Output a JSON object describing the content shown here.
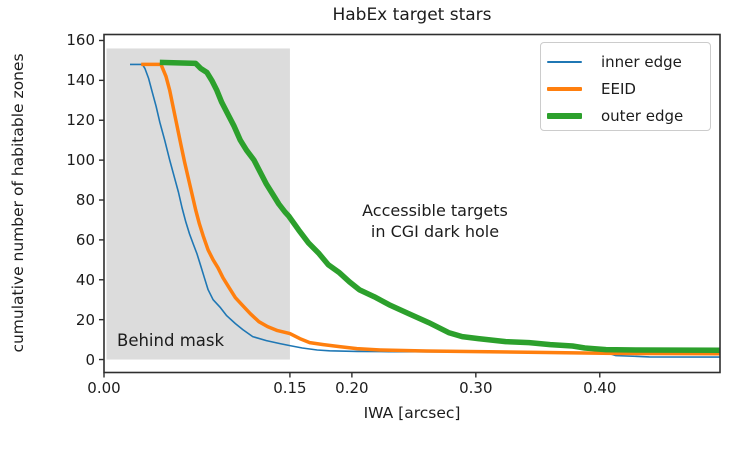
{
  "figure": {
    "title": "HabEx target stars"
  },
  "annotations": {
    "accessible_line1": "Accessible targets",
    "accessible_line2": "in CGI dark hole",
    "mask_label": "Behind mask"
  },
  "chart_data": {
    "type": "line",
    "title": "HabEx target stars",
    "xlabel": "IWA [arcsec]",
    "ylabel": "cumulative number of habitable zones",
    "xlim": [
      0,
      0.497
    ],
    "ylim": [
      -6.5,
      163
    ],
    "grid": false,
    "legend_position": "upper right",
    "x_ticks": [
      0.0,
      0.15,
      0.2,
      0.3,
      0.4
    ],
    "x_tick_labels": [
      "0.00",
      "0.15",
      "0.20",
      "0.30",
      "0.40"
    ],
    "y_ticks": [
      0,
      20,
      40,
      60,
      80,
      100,
      120,
      140,
      160
    ],
    "y_tick_labels": [
      "0",
      "20",
      "40",
      "60",
      "80",
      "100",
      "120",
      "140",
      "160"
    ],
    "shaded_region": {
      "label": "Behind mask",
      "x0": 0.002,
      "x1": 0.15,
      "y0": 0,
      "y1": 156,
      "color": "#dcdcdc"
    },
    "series": [
      {
        "name": "inner edge",
        "color": "#1f77b4",
        "linewidth": 1.6,
        "points": [
          [
            0.021,
            148
          ],
          [
            0.031,
            148
          ],
          [
            0.033,
            146
          ],
          [
            0.036,
            141
          ],
          [
            0.039,
            134
          ],
          [
            0.042,
            127
          ],
          [
            0.045,
            119
          ],
          [
            0.049,
            110
          ],
          [
            0.053,
            100
          ],
          [
            0.057,
            91
          ],
          [
            0.06,
            84
          ],
          [
            0.063,
            76
          ],
          [
            0.066,
            69
          ],
          [
            0.069,
            63
          ],
          [
            0.072,
            58
          ],
          [
            0.075,
            53
          ],
          [
            0.078,
            47
          ],
          [
            0.081,
            41
          ],
          [
            0.084,
            35
          ],
          [
            0.088,
            30
          ],
          [
            0.094,
            26
          ],
          [
            0.099,
            22
          ],
          [
            0.106,
            18
          ],
          [
            0.112,
            15
          ],
          [
            0.12,
            11.5
          ],
          [
            0.131,
            9.5
          ],
          [
            0.142,
            8
          ],
          [
            0.15,
            7
          ],
          [
            0.16,
            5.8
          ],
          [
            0.172,
            4.8
          ],
          [
            0.182,
            4.4
          ],
          [
            0.204,
            4.1
          ],
          [
            0.23,
            3.95
          ],
          [
            0.3,
            3.8
          ],
          [
            0.35,
            3.7
          ],
          [
            0.405,
            3.5
          ],
          [
            0.413,
            2
          ],
          [
            0.44,
            1.3
          ],
          [
            0.497,
            1.2
          ]
        ]
      },
      {
        "name": "EEID",
        "color": "#ff7f0e",
        "linewidth": 3.5,
        "points": [
          [
            0.03,
            148
          ],
          [
            0.046,
            148
          ],
          [
            0.048,
            145
          ],
          [
            0.05,
            142
          ],
          [
            0.053,
            135
          ],
          [
            0.056,
            126
          ],
          [
            0.059,
            117
          ],
          [
            0.062,
            108
          ],
          [
            0.065,
            99
          ],
          [
            0.068,
            91
          ],
          [
            0.071,
            83
          ],
          [
            0.074,
            75
          ],
          [
            0.077,
            68
          ],
          [
            0.08,
            62
          ],
          [
            0.084,
            55
          ],
          [
            0.088,
            50
          ],
          [
            0.092,
            46
          ],
          [
            0.096,
            41
          ],
          [
            0.101,
            36
          ],
          [
            0.106,
            31
          ],
          [
            0.112,
            27
          ],
          [
            0.118,
            23
          ],
          [
            0.125,
            19
          ],
          [
            0.132,
            16.5
          ],
          [
            0.14,
            14.5
          ],
          [
            0.15,
            13
          ],
          [
            0.158,
            10.5
          ],
          [
            0.166,
            8.5
          ],
          [
            0.177,
            7.5
          ],
          [
            0.19,
            6.5
          ],
          [
            0.204,
            5.5
          ],
          [
            0.223,
            4.8
          ],
          [
            0.26,
            4.3
          ],
          [
            0.302,
            4
          ],
          [
            0.35,
            3.6
          ],
          [
            0.41,
            3.1
          ],
          [
            0.497,
            2.9
          ]
        ]
      },
      {
        "name": "outer edge",
        "color": "#2ca02c",
        "linewidth": 5.5,
        "points": [
          [
            0.045,
            149
          ],
          [
            0.074,
            148.5
          ],
          [
            0.078,
            146
          ],
          [
            0.083,
            144
          ],
          [
            0.087,
            140
          ],
          [
            0.091,
            135
          ],
          [
            0.095,
            129
          ],
          [
            0.1,
            123
          ],
          [
            0.105,
            117
          ],
          [
            0.11,
            110
          ],
          [
            0.115,
            105
          ],
          [
            0.121,
            100
          ],
          [
            0.126,
            94
          ],
          [
            0.131,
            88
          ],
          [
            0.136,
            83
          ],
          [
            0.141,
            78
          ],
          [
            0.146,
            74
          ],
          [
            0.149,
            72
          ],
          [
            0.157,
            65
          ],
          [
            0.165,
            58.5
          ],
          [
            0.173,
            53.5
          ],
          [
            0.181,
            47.5
          ],
          [
            0.19,
            43.5
          ],
          [
            0.198,
            39
          ],
          [
            0.206,
            35
          ],
          [
            0.218,
            31.5
          ],
          [
            0.23,
            27.5
          ],
          [
            0.246,
            23
          ],
          [
            0.262,
            18.5
          ],
          [
            0.278,
            13.5
          ],
          [
            0.289,
            11.5
          ],
          [
            0.302,
            10.5
          ],
          [
            0.324,
            9
          ],
          [
            0.343,
            8.5
          ],
          [
            0.36,
            7.5
          ],
          [
            0.378,
            6.8
          ],
          [
            0.388,
            5.8
          ],
          [
            0.405,
            5
          ],
          [
            0.43,
            4.8
          ],
          [
            0.497,
            4.7
          ]
        ]
      }
    ],
    "style": {
      "spine_color": "#2e2e2e",
      "tick_color": "#2e2e2e",
      "text_color": "#1c1c1c"
    }
  }
}
